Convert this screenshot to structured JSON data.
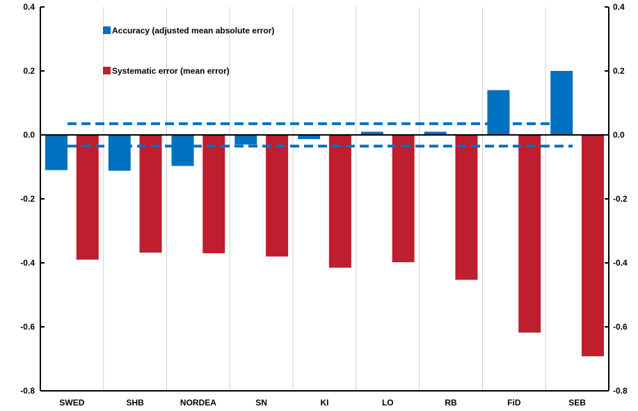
{
  "chart_data": {
    "type": "bar",
    "categories": [
      "SWED",
      "SHB",
      "NORDEA",
      "SN",
      "KI",
      "LO",
      "RB",
      "FiD",
      "SEB"
    ],
    "series": [
      {
        "name": "Accuracy (adjusted mean absolute error)",
        "color": "#0070C0",
        "values": [
          -0.11,
          -0.112,
          -0.097,
          -0.03,
          -0.013,
          0.01,
          0.01,
          0.14,
          0.2
        ]
      },
      {
        "name": "Systematic error (mean error)",
        "color": "#BE1E2D",
        "values": [
          -0.39,
          -0.368,
          -0.37,
          -0.38,
          -0.415,
          -0.398,
          -0.453,
          -0.618,
          -0.692
        ]
      }
    ],
    "reference_lines": [
      {
        "value": 0.035,
        "style": "dashed",
        "color": "#0070C0"
      },
      {
        "value": -0.035,
        "style": "dashed",
        "color": "#0070C0"
      }
    ],
    "ylim": [
      -0.8,
      0.4
    ],
    "yticks": [
      "0.4",
      "0.2",
      "0.0",
      "-0.2",
      "-0.4",
      "-0.6",
      "-0.8"
    ],
    "ytick_values": [
      0.4,
      0.2,
      0.0,
      -0.2,
      -0.4,
      -0.6,
      -0.8
    ],
    "secondary_axis": true,
    "grid": "vertical",
    "legend_position": "top-left",
    "title": "",
    "xlabel": "",
    "ylabel": ""
  }
}
